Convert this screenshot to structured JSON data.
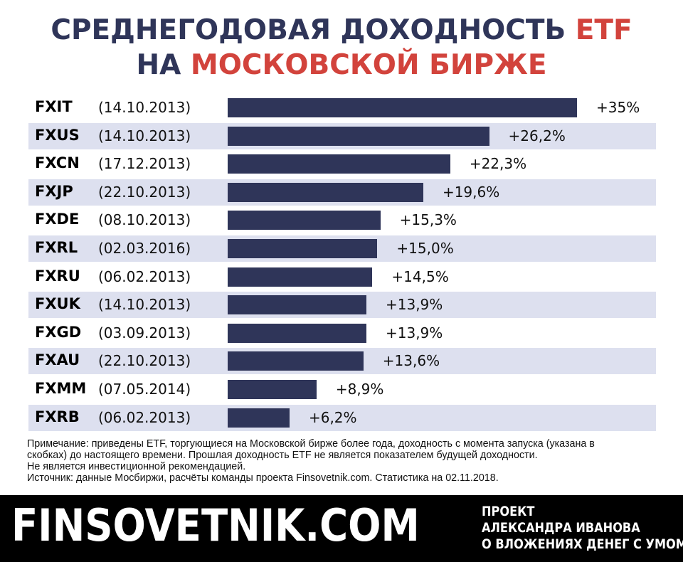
{
  "header": {
    "line1_main": "СРЕДНЕГОДОВАЯ ДОХОДНОСТЬ ",
    "line1_accent": "ETF",
    "line2_main": "НА ",
    "line2_accent": "МОСКОВСКОЙ БИРЖЕ"
  },
  "colors": {
    "bar": "#2f3559",
    "title_dark": "#2f3559",
    "title_accent": "#d2433c",
    "row_shade": "#dde0ef",
    "footer_bg": "#000000"
  },
  "chart_data": {
    "type": "bar",
    "orientation": "horizontal",
    "categories": [
      "FXIT",
      "FXUS",
      "FXCN",
      "FXJP",
      "FXDE",
      "FXRL",
      "FXRU",
      "FXUK",
      "FXGD",
      "FXAU",
      "FXMM",
      "FXRB"
    ],
    "launch_dates": [
      "(14.10.2013)",
      "(14.10.2013)",
      "(17.12.2013)",
      "(22.10.2013)",
      "(08.10.2013)",
      "(02.03.2016)",
      "(06.02.2013)",
      "(14.10.2013)",
      "(03.09.2013)",
      "(22.10.2013)",
      "(07.05.2014)",
      "(06.02.2013)"
    ],
    "values": [
      35,
      26.2,
      22.3,
      19.6,
      15.3,
      15.0,
      14.5,
      13.9,
      13.9,
      13.6,
      8.9,
      6.2
    ],
    "value_labels": [
      "+35%",
      "+26,2%",
      "+22,3%",
      "+19,6%",
      "+15,3%",
      "+15,0%",
      "+14,5%",
      "+13,9%",
      "+13,9%",
      "+13,6%",
      "+8,9%",
      "+6,2%"
    ],
    "xlim": [
      0,
      35
    ],
    "grid": false,
    "legend": "none"
  },
  "note": {
    "line1": "Примечание: приведены ETF, торгующиеся на Московской бирже более года, доходность с момента запуска (указана в",
    "line2": "скобках) до настоящего времени. Прошлая доходность ETF не является показателем будущей доходности.",
    "line3": "Не является инвестиционной рекомендацией.",
    "line4": "Источник: данные Мосбиржи, расчёты команды проекта Finsovetnik.com. Статистика на 02.11.2018."
  },
  "footer": {
    "brand": "FINSOVETNIK.COM",
    "tagline_1": "ПРОЕКТ",
    "tagline_2": "АЛЕКСАНДРА ИВАНОВА",
    "tagline_3": "О ВЛОЖЕНИЯХ ДЕНЕГ С УМОМ"
  }
}
